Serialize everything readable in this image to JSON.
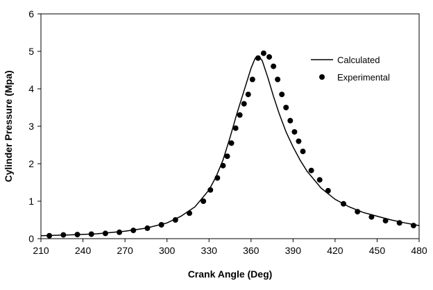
{
  "chart_data": {
    "type": "line",
    "xlabel": "Crank Angle (Deg)",
    "ylabel": "Cylinder Pressure (Mpa)",
    "xlim": [
      210,
      480
    ],
    "ylim": [
      0,
      6
    ],
    "x_ticks": [
      "210",
      "240",
      "270",
      "300",
      "330",
      "360",
      "390",
      "420",
      "450",
      "480"
    ],
    "y_ticks": [
      "0",
      "1",
      "2",
      "3",
      "4",
      "5",
      "6"
    ],
    "grid": false,
    "legend_position": "top-right",
    "series": [
      {
        "name": "Calculated",
        "style": "line",
        "color": "#000000",
        "x": [
          210,
          230,
          250,
          270,
          285,
          300,
          310,
          320,
          330,
          335,
          340,
          345,
          350,
          355,
          360,
          363,
          366,
          368,
          372,
          376,
          380,
          385,
          390,
          395,
          400,
          410,
          420,
          430,
          440,
          450,
          460,
          470,
          480
        ],
        "y": [
          0.08,
          0.1,
          0.13,
          0.2,
          0.28,
          0.42,
          0.6,
          0.85,
          1.3,
          1.65,
          2.1,
          2.7,
          3.35,
          3.95,
          4.55,
          4.82,
          4.85,
          4.75,
          4.3,
          3.8,
          3.35,
          2.85,
          2.45,
          2.1,
          1.8,
          1.35,
          1.05,
          0.85,
          0.7,
          0.6,
          0.5,
          0.42,
          0.35
        ]
      },
      {
        "name": "Experimental",
        "style": "marker",
        "color": "#000000",
        "x": [
          216,
          226,
          236,
          246,
          256,
          266,
          276,
          286,
          296,
          306,
          316,
          326,
          331,
          336,
          340,
          343,
          346,
          349,
          352,
          355,
          358,
          361,
          365,
          369,
          373,
          376,
          379,
          382,
          385,
          388,
          391,
          394,
          397,
          403,
          409,
          415,
          426,
          436,
          446,
          456,
          466,
          476
        ],
        "y": [
          0.08,
          0.1,
          0.11,
          0.12,
          0.14,
          0.17,
          0.22,
          0.28,
          0.37,
          0.5,
          0.68,
          1.0,
          1.3,
          1.62,
          1.95,
          2.2,
          2.55,
          2.95,
          3.3,
          3.6,
          3.85,
          4.25,
          4.82,
          4.95,
          4.85,
          4.6,
          4.25,
          3.85,
          3.5,
          3.15,
          2.85,
          2.6,
          2.33,
          1.82,
          1.57,
          1.28,
          0.93,
          0.72,
          0.58,
          0.48,
          0.42,
          0.35
        ]
      }
    ]
  }
}
